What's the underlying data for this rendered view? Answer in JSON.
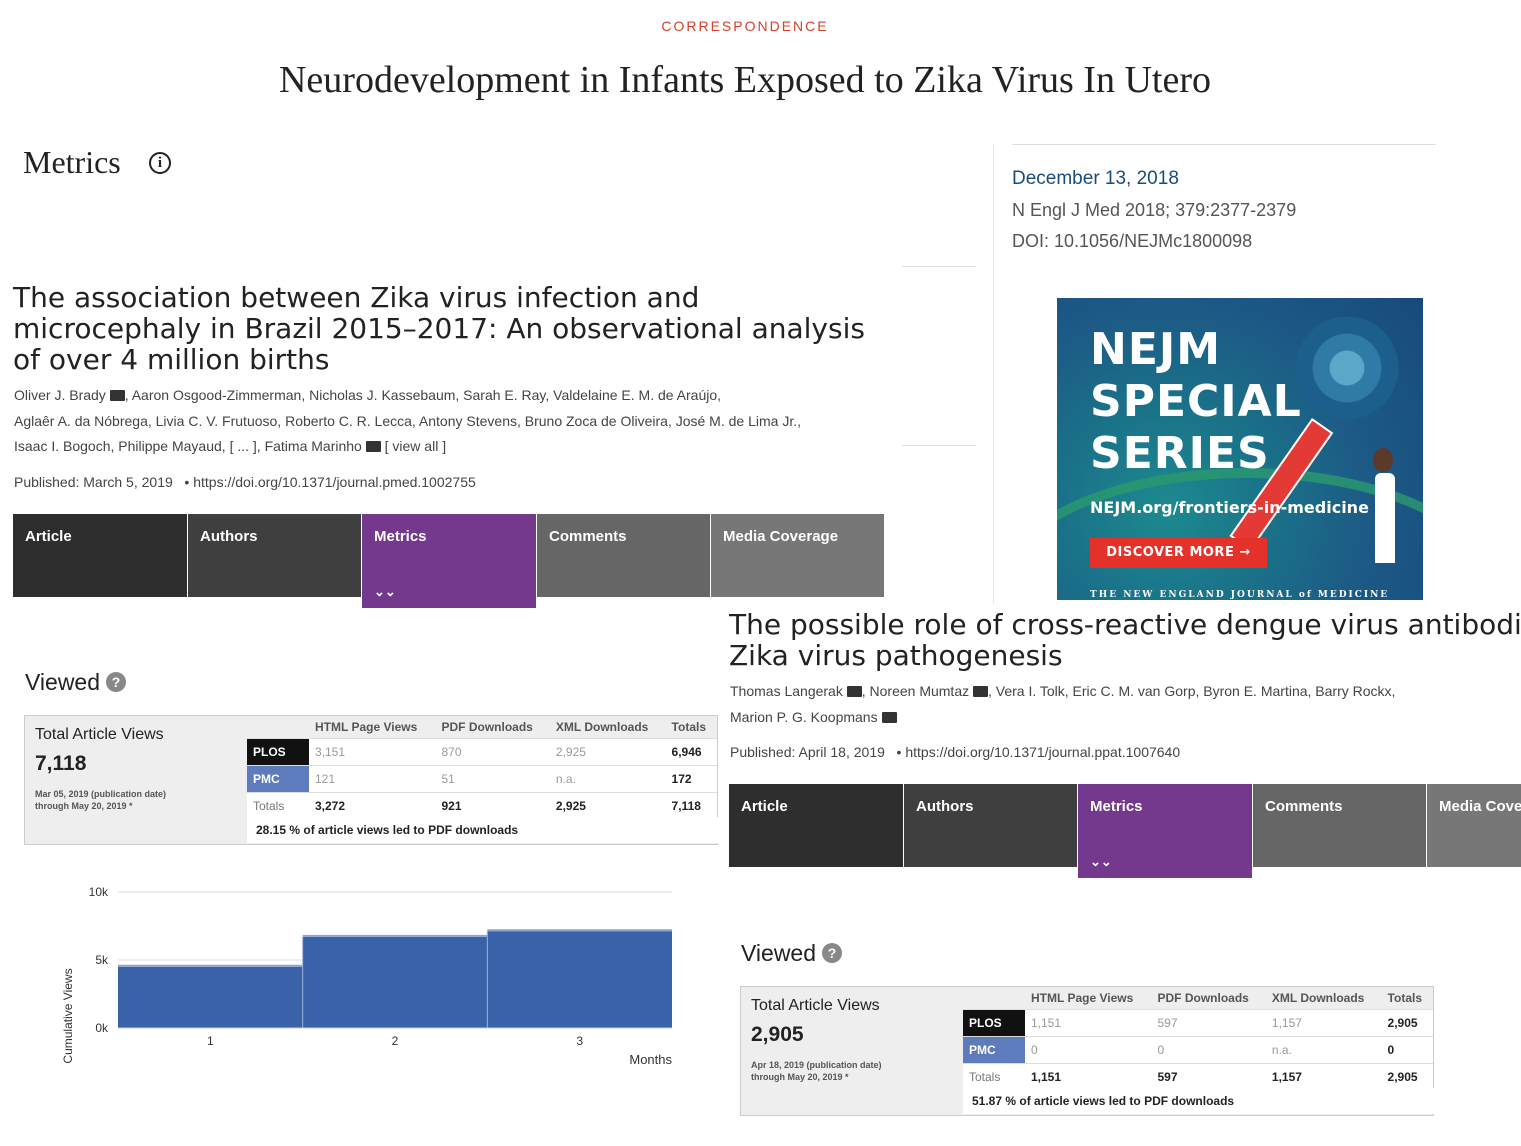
{
  "header": {
    "kicker": "CORRESPONDENCE",
    "title": "Neurodevelopment in Infants Exposed to Zika Virus In Utero"
  },
  "metrics_heading": "Metrics",
  "sidebar": {
    "date": "December 13, 2018",
    "citation": "N Engl J Med 2018; 379:2377-2379",
    "doi": "DOI: 10.1056/NEJMc1800098"
  },
  "ad": {
    "line1": "NEJM",
    "line2": "SPECIAL",
    "line3": "SERIES",
    "url": "NEJM.org/frontiers-in-medicine",
    "button": "DISCOVER MORE →",
    "footer": "THE NEW ENGLAND JOURNAL of MEDICINE"
  },
  "article1": {
    "title": "The association between Zika virus infection and microcephaly in Brazil 2015–2017: An observational analysis of over 4 million births",
    "authors_line1a": "Oliver J. Brady",
    "authors_line1b": ",  Aaron Osgood-Zimmerman,  Nicholas J. Kassebaum,  Sarah E. Ray,  Valdelaine E. M. de Araújo,",
    "authors_line2": "Aglaêr A. da Nóbrega,  Livia C. V. Frutuoso,  Roberto C. R. Lecca,  Antony Stevens,  Bruno Zoca de Oliveira,  José M. de Lima Jr.,",
    "authors_line3a": "Isaac I. Bogoch,  Philippe Mayaud,  [ ... ], Fatima Marinho",
    "view_all": "[ view all ]",
    "published": "Published: March 5, 2019",
    "doi": "https://doi.org/10.1371/journal.pmed.1002755",
    "tabs": [
      "Article",
      "Authors",
      "Metrics",
      "Comments",
      "Media Coverage"
    ],
    "viewed": "Viewed",
    "views": {
      "total_label": "Total Article Views",
      "total": "7,118",
      "date_line1": "Mar 05, 2019 (publication date)",
      "date_line2": "through May 20, 2019 *",
      "headers": [
        "HTML Page Views",
        "PDF Downloads",
        "XML Downloads",
        "Totals"
      ],
      "rows": [
        {
          "src": "PLOS",
          "html": "3,151",
          "pdf": "870",
          "xml": "2,925",
          "total": "6,946"
        },
        {
          "src": "PMC",
          "html": "121",
          "pdf": "51",
          "xml": "n.a.",
          "total": "172"
        },
        {
          "src": "Totals",
          "html": "3,272",
          "pdf": "921",
          "xml": "2,925",
          "total": "7,118"
        }
      ],
      "ratio": "28.15 % of article views led to PDF downloads"
    }
  },
  "chart_data": {
    "type": "area",
    "title": "",
    "ylabel": "Cumulative Views",
    "xlabel": "Months",
    "x": [
      1,
      2,
      3
    ],
    "values": [
      4500,
      6700,
      7118
    ],
    "ylim": [
      0,
      10000
    ],
    "yticks": [
      "0k",
      "5k",
      "10k"
    ],
    "xticks": [
      "1",
      "2",
      "3"
    ],
    "color": "#3a62a8"
  },
  "article2": {
    "title": "The possible role of cross-reactive dengue virus antibodies in Zika virus pathogenesis",
    "authors_line1": "Thomas Langerak",
    "authors_line1b": ",  Noreen Mumtaz",
    "authors_line1c": ",  Vera I. Tolk,  Eric C. M. van Gorp,  Byron E. Martina,  Barry Rockx,",
    "authors_line2": "Marion P. G. Koopmans",
    "published": "Published: April 18, 2019",
    "doi": "https://doi.org/10.1371/journal.ppat.1007640",
    "tabs": [
      "Article",
      "Authors",
      "Metrics",
      "Comments",
      "Media Coverage"
    ],
    "viewed": "Viewed",
    "views": {
      "total_label": "Total Article Views",
      "total": "2,905",
      "date_line1": "Apr 18, 2019 (publication date)",
      "date_line2": "through May 20, 2019 *",
      "headers": [
        "HTML Page Views",
        "PDF Downloads",
        "XML Downloads",
        "Totals"
      ],
      "rows": [
        {
          "src": "PLOS",
          "html": "1,151",
          "pdf": "597",
          "xml": "1,157",
          "total": "2,905"
        },
        {
          "src": "PMC",
          "html": "0",
          "pdf": "0",
          "xml": "n.a.",
          "total": "0"
        },
        {
          "src": "Totals",
          "html": "1,151",
          "pdf": "597",
          "xml": "1,157",
          "total": "2,905"
        }
      ],
      "ratio": "51.87 % of article views led to PDF downloads"
    }
  }
}
